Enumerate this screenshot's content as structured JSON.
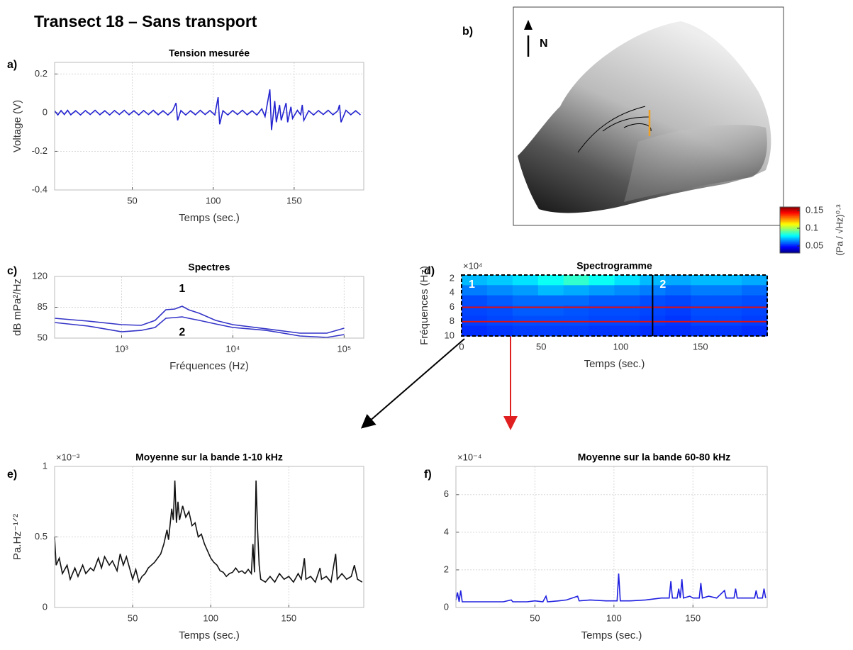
{
  "title": "Transect 18 – Sans transport",
  "panel_labels": [
    "a)",
    "b)",
    "c)",
    "d)",
    "e)",
    "f)"
  ],
  "map": {
    "label": "N"
  },
  "chart_data": [
    {
      "type": "line",
      "title": "Tension mesurée",
      "xlabel": "Temps (sec.)",
      "ylabel": "Voltage (V)",
      "xlim": [
        2,
        193
      ],
      "ylim": [
        -0.4,
        0.26
      ],
      "xticks": [
        50,
        100,
        150
      ],
      "yticks": [
        -0.4,
        -0.2,
        0,
        0.2
      ],
      "grid": true,
      "x": [
        2,
        4,
        6,
        8,
        10,
        12,
        15,
        18,
        21,
        24,
        27,
        30,
        33,
        36,
        39,
        42,
        45,
        48,
        51,
        54,
        57,
        60,
        63,
        66,
        69,
        72,
        75,
        77,
        78,
        80,
        83,
        86,
        89,
        92,
        95,
        98,
        101,
        103,
        104,
        106,
        109,
        112,
        115,
        118,
        121,
        124,
        127,
        130,
        132,
        135,
        136,
        138,
        139,
        141,
        142,
        145,
        146,
        148,
        149,
        152,
        154,
        155,
        156,
        159,
        162,
        165,
        168,
        171,
        174,
        177,
        178,
        179,
        182,
        185,
        188,
        191
      ],
      "series": [
        {
          "color": "#2323d0",
          "values": [
            0.01,
            -0.012,
            0.011,
            -0.01,
            0.012,
            -0.011,
            0.01,
            -0.012,
            0.011,
            -0.01,
            0.012,
            -0.011,
            0.01,
            -0.012,
            0.011,
            -0.01,
            0.012,
            -0.011,
            0.01,
            -0.012,
            0.011,
            -0.01,
            0.012,
            -0.011,
            0.01,
            -0.012,
            0.011,
            0.05,
            -0.04,
            0.011,
            -0.012,
            0.01,
            -0.011,
            0.012,
            -0.01,
            0.011,
            -0.012,
            0.08,
            -0.06,
            0.01,
            -0.012,
            0.011,
            -0.01,
            0.012,
            -0.011,
            0.01,
            -0.012,
            0.02,
            -0.02,
            0.12,
            -0.09,
            0.06,
            -0.05,
            0.04,
            -0.04,
            0.05,
            -0.05,
            0.03,
            -0.03,
            0.012,
            -0.011,
            0.04,
            -0.04,
            0.01,
            -0.012,
            0.011,
            -0.01,
            0.012,
            -0.011,
            0.01,
            0.04,
            -0.05,
            0.012,
            -0.011,
            0.01,
            -0.012
          ]
        }
      ]
    },
    {
      "type": "line",
      "title": "Spectres",
      "xlabel": "Fréquences (Hz)",
      "ylabel": "dB mPa²/Hz",
      "xlog": true,
      "xlim": [
        250,
        150000
      ],
      "ylim": [
        50,
        120
      ],
      "xticks": [
        {
          "value": 1000,
          "label": "10³"
        },
        {
          "value": 10000,
          "label": "10⁴"
        },
        {
          "value": 100000,
          "label": "10⁵"
        }
      ],
      "yticks": [
        50,
        85,
        120
      ],
      "grid": true,
      "x": [
        250,
        500,
        1000,
        1500,
        2000,
        2500,
        3000,
        3500,
        4000,
        5000,
        7000,
        10000,
        20000,
        40000,
        70000,
        100000
      ],
      "series": [
        {
          "name": "1",
          "color": "#3434c8",
          "values": [
            72.5,
            69.3,
            65.3,
            64.5,
            70.1,
            82.2,
            83,
            86.2,
            82.2,
            78.2,
            70.1,
            65.3,
            60.5,
            55.6,
            55.6,
            61.3
          ]
        },
        {
          "name": "2",
          "color": "#3434c8",
          "values": [
            67.7,
            63.7,
            57.2,
            58.8,
            62.1,
            72.5,
            73.3,
            74.1,
            72.5,
            70.1,
            66.1,
            62.1,
            58.8,
            52.4,
            50.8,
            54
          ]
        }
      ]
    },
    {
      "type": "heatmap",
      "title": "Spectrogramme",
      "xlabel": "Temps (sec.)",
      "ylabel": "Fréquences (Hz)",
      "yexponent": "×10⁴",
      "xlim": [
        0,
        192
      ],
      "ylim": [
        1.5,
        10
      ],
      "yreverse": true,
      "xticks": [
        0,
        50,
        100,
        150
      ],
      "yticks": [
        2,
        4,
        6,
        8,
        10
      ],
      "clim": [
        0.03,
        0.16
      ],
      "cticks": [
        0.05,
        0.1,
        0.15
      ],
      "clabel": "(Pa / √Hz)⁰·³",
      "hlines": [
        6,
        8
      ],
      "vlines": [
        120
      ],
      "annotations": [
        "1",
        "2"
      ],
      "z": [
        [
          0.07,
          0.072,
          0.075,
          0.08,
          0.085,
          0.08,
          0.075,
          0.07,
          0.068,
          0.07,
          0.07,
          0.068
        ],
        [
          0.062,
          0.064,
          0.066,
          0.07,
          0.068,
          0.066,
          0.064,
          0.062,
          0.06,
          0.062,
          0.062,
          0.06
        ],
        [
          0.056,
          0.058,
          0.06,
          0.06,
          0.06,
          0.058,
          0.058,
          0.056,
          0.055,
          0.057,
          0.057,
          0.056
        ],
        [
          0.055,
          0.056,
          0.058,
          0.058,
          0.057,
          0.056,
          0.056,
          0.055,
          0.054,
          0.056,
          0.056,
          0.055
        ],
        [
          0.054,
          0.055,
          0.056,
          0.056,
          0.056,
          0.055,
          0.055,
          0.054,
          0.053,
          0.055,
          0.055,
          0.054
        ],
        [
          0.052,
          0.053,
          0.054,
          0.054,
          0.054,
          0.053,
          0.053,
          0.052,
          0.052,
          0.053,
          0.053,
          0.052
        ]
      ]
    },
    {
      "type": "line",
      "title": "Moyenne sur la bande 1-10 kHz",
      "xlabel": "Temps (sec.)",
      "ylabel": "Pa.Hz⁻¹ᐟ²",
      "yexponent": "×10⁻³",
      "xlim": [
        0,
        198
      ],
      "ylim": [
        0,
        1
      ],
      "xticks": [
        50,
        100,
        150
      ],
      "yticks": [
        0,
        0.5,
        1
      ],
      "grid": true,
      "x": [
        0,
        1,
        3,
        5,
        8,
        10,
        13,
        15,
        18,
        20,
        23,
        25,
        28,
        30,
        32,
        35,
        37,
        40,
        42,
        44,
        46,
        48,
        50,
        52,
        54,
        56,
        58,
        60,
        62,
        64,
        66,
        68,
        70,
        72,
        73,
        75,
        76,
        77,
        78,
        79,
        80,
        82,
        84,
        86,
        88,
        90,
        92,
        94,
        96,
        98,
        100,
        102,
        104,
        106,
        108,
        110,
        112,
        114,
        116,
        118,
        120,
        122,
        124,
        126,
        127,
        128,
        129,
        130,
        131,
        132,
        135,
        138,
        141,
        144,
        147,
        150,
        153,
        156,
        158,
        160,
        161,
        164,
        167,
        170,
        171,
        174,
        177,
        180,
        181,
        184,
        187,
        190,
        192,
        194,
        197
      ],
      "series": [
        {
          "color": "#111111",
          "values": [
            0.5,
            0.3,
            0.35,
            0.24,
            0.3,
            0.2,
            0.28,
            0.22,
            0.3,
            0.24,
            0.28,
            0.26,
            0.35,
            0.28,
            0.36,
            0.3,
            0.33,
            0.26,
            0.38,
            0.3,
            0.36,
            0.28,
            0.2,
            0.27,
            0.18,
            0.22,
            0.24,
            0.28,
            0.3,
            0.32,
            0.35,
            0.38,
            0.45,
            0.55,
            0.48,
            0.7,
            0.62,
            0.9,
            0.6,
            0.75,
            0.62,
            0.72,
            0.64,
            0.68,
            0.58,
            0.6,
            0.5,
            0.52,
            0.45,
            0.4,
            0.35,
            0.32,
            0.3,
            0.26,
            0.25,
            0.22,
            0.24,
            0.25,
            0.28,
            0.25,
            0.26,
            0.24,
            0.27,
            0.24,
            0.45,
            0.25,
            0.9,
            0.55,
            0.3,
            0.2,
            0.18,
            0.22,
            0.18,
            0.24,
            0.2,
            0.22,
            0.18,
            0.24,
            0.2,
            0.35,
            0.2,
            0.22,
            0.18,
            0.28,
            0.2,
            0.22,
            0.18,
            0.38,
            0.2,
            0.24,
            0.2,
            0.22,
            0.3,
            0.2,
            0.18
          ]
        }
      ]
    },
    {
      "type": "line",
      "title": "Moyenne sur la bande 60-80 kHz",
      "xlabel": "Temps (sec.)",
      "yexponent": "×10⁻⁴",
      "xlim": [
        0,
        197
      ],
      "ylim": [
        0,
        7.5
      ],
      "xticks": [
        50,
        100,
        150
      ],
      "yticks": [
        0,
        2,
        4,
        6
      ],
      "grid": true,
      "x": [
        0,
        1,
        2,
        3,
        4,
        10,
        20,
        30,
        35,
        36,
        45,
        50,
        55,
        57,
        58,
        65,
        70,
        77,
        78,
        85,
        95,
        102,
        103,
        104,
        110,
        120,
        130,
        135,
        136,
        137,
        140,
        141,
        142,
        143,
        144,
        148,
        150,
        154,
        155,
        156,
        160,
        165,
        170,
        171,
        176,
        177,
        178,
        185,
        189,
        190,
        191,
        194,
        195,
        196
      ],
      "series": [
        {
          "color": "#2020e0",
          "values": [
            0.4,
            0.8,
            0.3,
            0.9,
            0.3,
            0.3,
            0.3,
            0.3,
            0.4,
            0.3,
            0.3,
            0.35,
            0.3,
            0.6,
            0.3,
            0.35,
            0.4,
            0.6,
            0.35,
            0.4,
            0.35,
            0.35,
            1.8,
            0.35,
            0.35,
            0.4,
            0.5,
            0.5,
            1.4,
            0.5,
            0.5,
            1,
            0.5,
            1.5,
            0.5,
            0.6,
            0.5,
            0.5,
            1.3,
            0.5,
            0.6,
            0.5,
            0.9,
            0.5,
            0.5,
            1,
            0.5,
            0.5,
            0.5,
            0.9,
            0.5,
            0.5,
            1,
            0.5
          ]
        }
      ]
    }
  ]
}
